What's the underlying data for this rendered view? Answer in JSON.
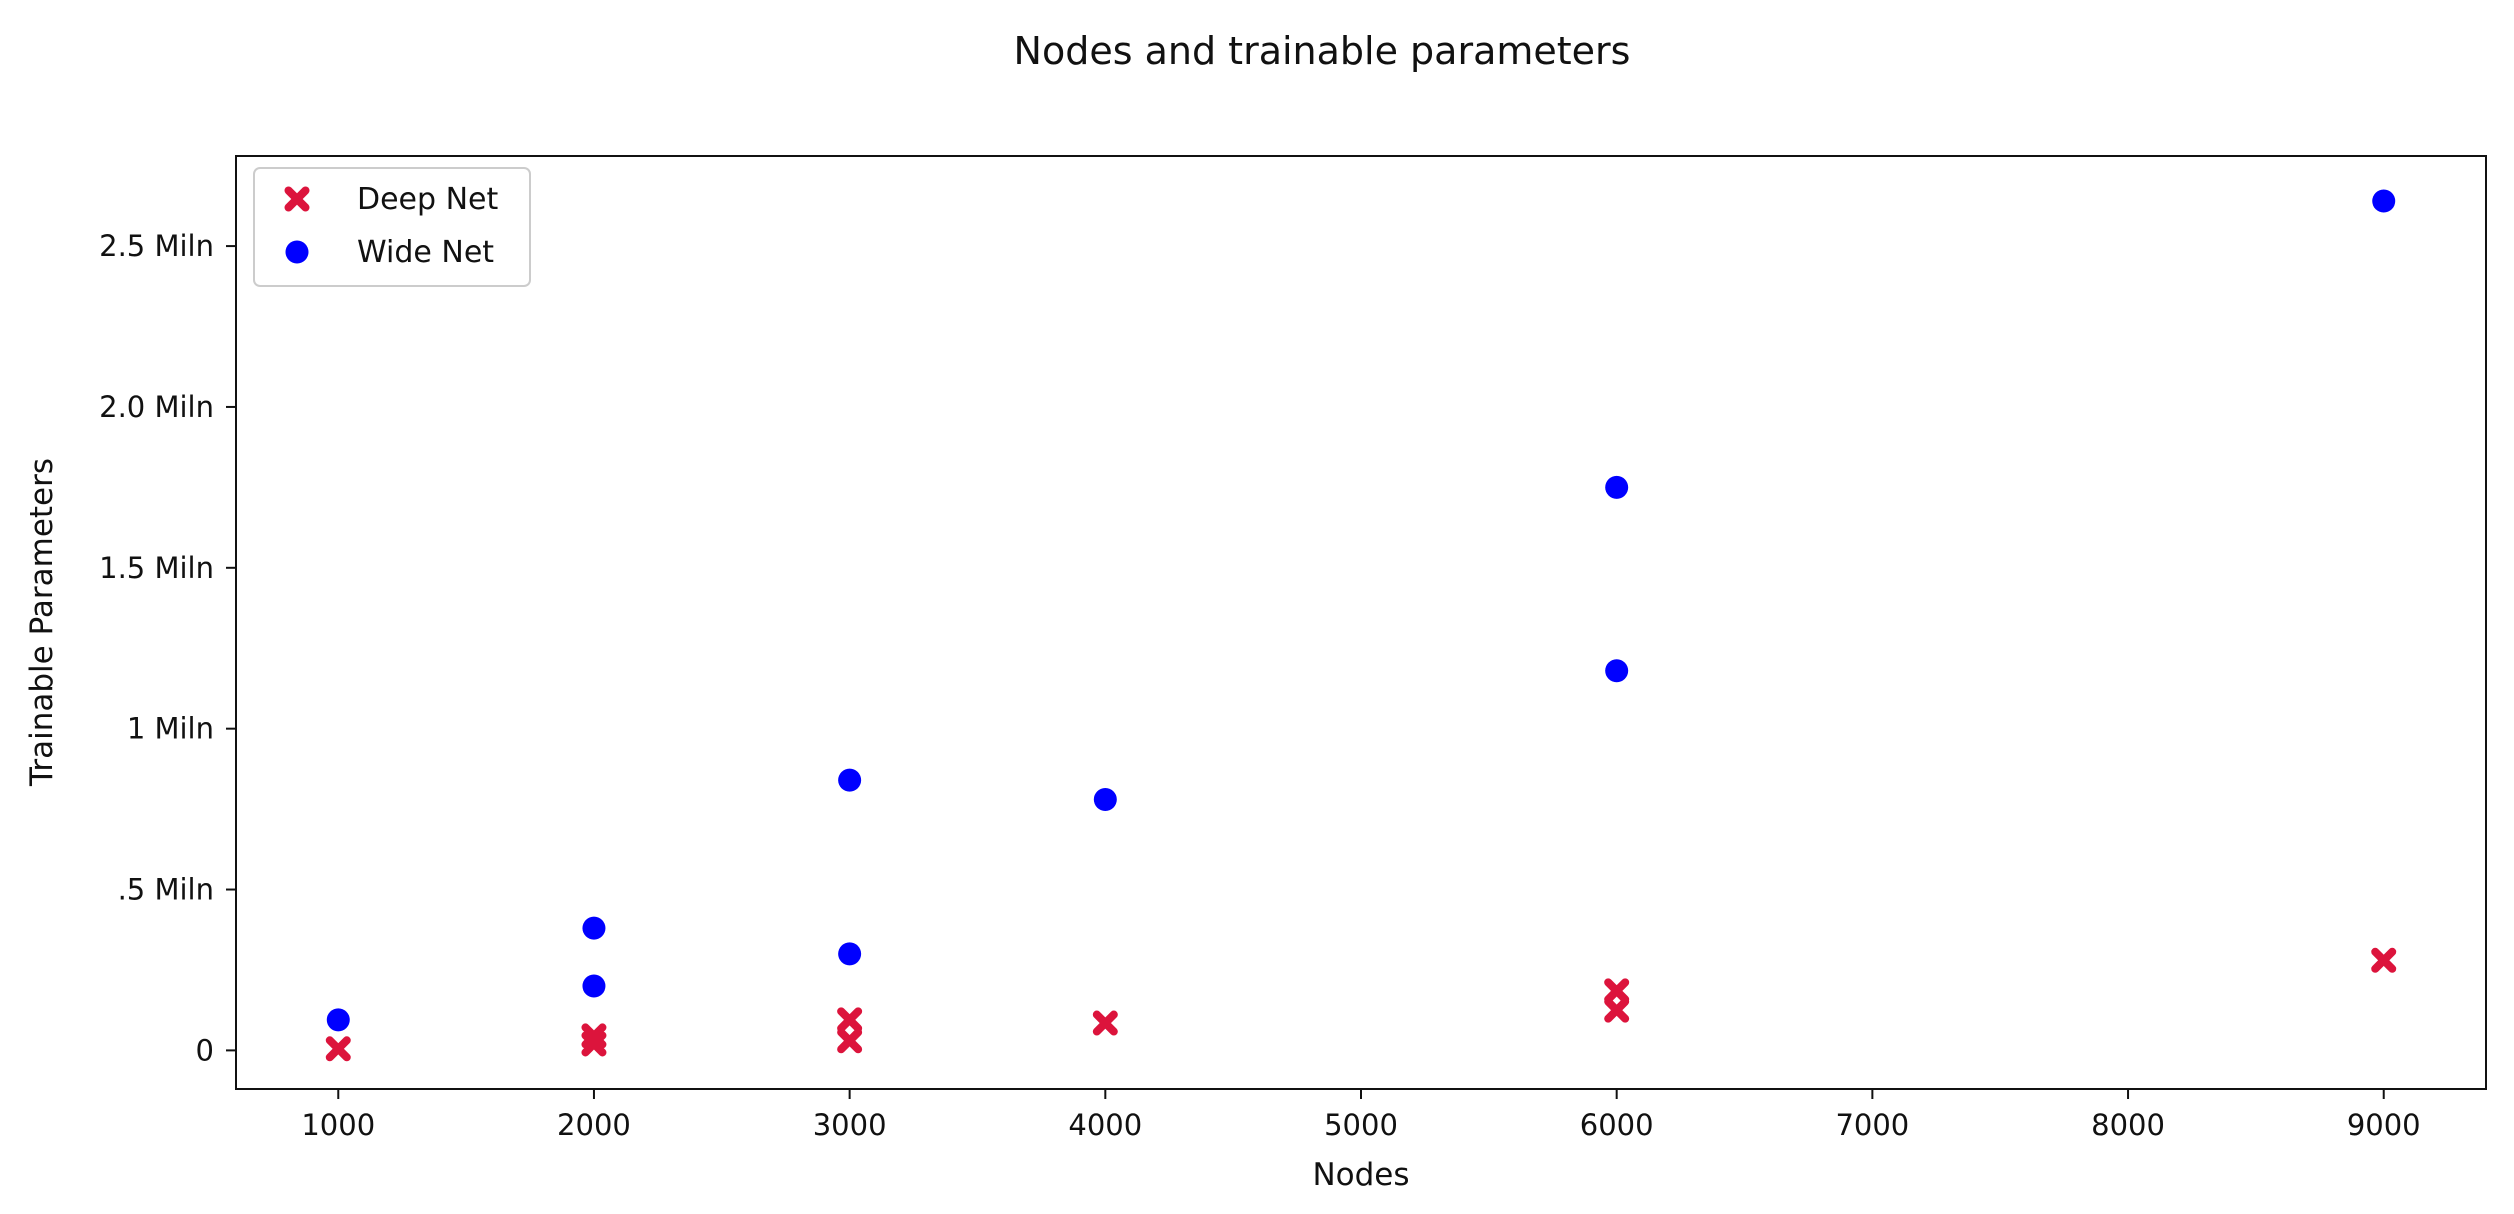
{
  "chart_data": {
    "type": "scatter",
    "title": "Nodes and trainable parameters",
    "xlabel": "Nodes",
    "ylabel": "Trainable Parameters",
    "xlim": [
      600,
      9400
    ],
    "ylim": [
      -0.12,
      2.78
    ],
    "grid": false,
    "legend_position": "top-left",
    "x_ticks": [
      {
        "value": 1000,
        "label": "1000"
      },
      {
        "value": 2000,
        "label": "2000"
      },
      {
        "value": 3000,
        "label": "3000"
      },
      {
        "value": 4000,
        "label": "4000"
      },
      {
        "value": 5000,
        "label": "5000"
      },
      {
        "value": 6000,
        "label": "6000"
      },
      {
        "value": 7000,
        "label": "7000"
      },
      {
        "value": 8000,
        "label": "8000"
      },
      {
        "value": 9000,
        "label": "9000"
      }
    ],
    "y_ticks": [
      {
        "value": 0,
        "label": "0"
      },
      {
        "value": 0.5,
        "label": ".5 Miln"
      },
      {
        "value": 1.0,
        "label": "1 Miln"
      },
      {
        "value": 1.5,
        "label": "1.5 Miln"
      },
      {
        "value": 2.0,
        "label": "2.0 Miln"
      },
      {
        "value": 2.5,
        "label": "2.5 Miln"
      }
    ],
    "series": [
      {
        "name": "Deep Net",
        "marker": "x",
        "color": "#dc143c",
        "points": [
          {
            "x": 1000,
            "y": 0.005
          },
          {
            "x": 2000,
            "y": 0.02
          },
          {
            "x": 2000,
            "y": 0.045
          },
          {
            "x": 3000,
            "y": 0.03
          },
          {
            "x": 3000,
            "y": 0.095
          },
          {
            "x": 4000,
            "y": 0.085
          },
          {
            "x": 6000,
            "y": 0.125
          },
          {
            "x": 6000,
            "y": 0.185
          },
          {
            "x": 9000,
            "y": 0.28
          }
        ]
      },
      {
        "name": "Wide Net",
        "marker": "o",
        "color": "#0000ff",
        "points": [
          {
            "x": 1000,
            "y": 0.095
          },
          {
            "x": 2000,
            "y": 0.2
          },
          {
            "x": 2000,
            "y": 0.38
          },
          {
            "x": 3000,
            "y": 0.3
          },
          {
            "x": 3000,
            "y": 0.84
          },
          {
            "x": 4000,
            "y": 0.78
          },
          {
            "x": 6000,
            "y": 1.18
          },
          {
            "x": 6000,
            "y": 1.75
          },
          {
            "x": 9000,
            "y": 2.64
          }
        ]
      }
    ]
  }
}
